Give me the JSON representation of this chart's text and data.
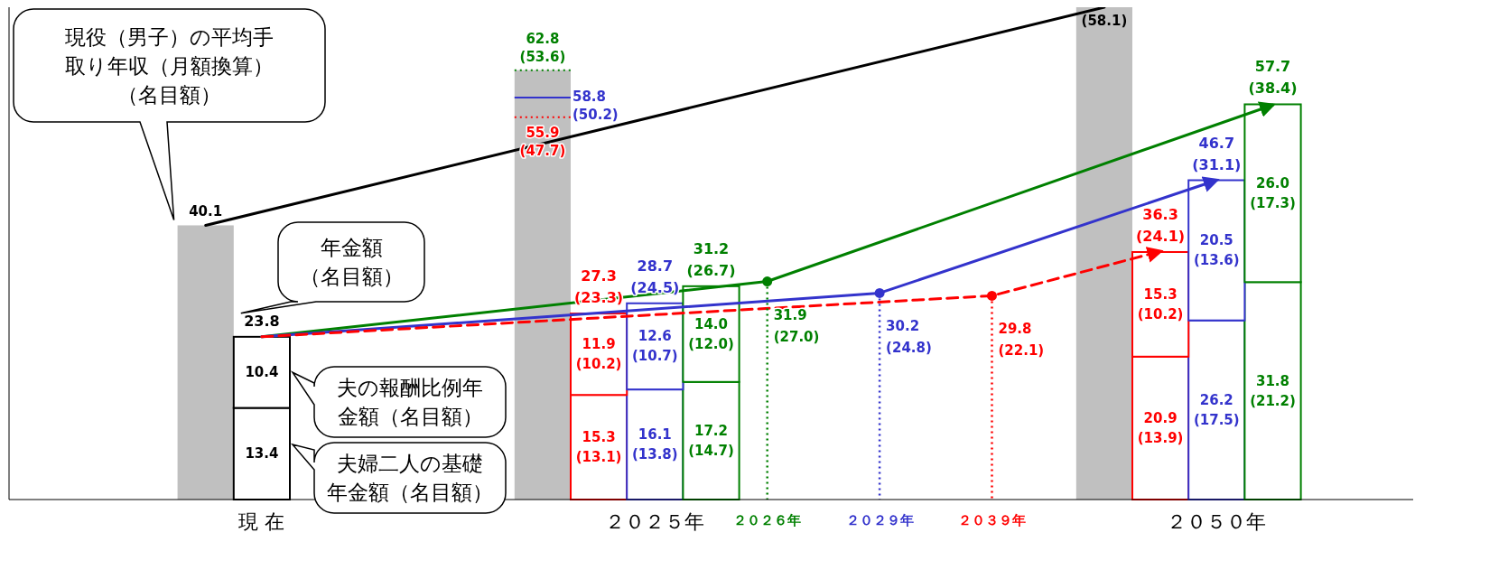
{
  "chart_data": {
    "type": "bar",
    "stacked": true,
    "ylim": [
      0,
      72
    ],
    "tick_labels": "x",
    "categories": [
      null,
      null,
      null,
      null,
      "現 在",
      null,
      null,
      null,
      null,
      null,
      null,
      "２０２５年",
      null,
      "２０２６年",
      null,
      "２０２９年",
      null,
      "２０３９年",
      null,
      null,
      null,
      "２０５０年",
      null,
      null,
      null
    ],
    "series": [
      {
        "color": "#c0c0c0",
        "values": [
          null,
          null,
          null,
          40.1,
          null,
          null,
          null,
          null,
          null,
          62.8,
          null,
          null,
          null,
          null,
          null,
          null,
          null,
          null,
          null,
          72,
          null,
          null,
          null,
          null,
          null
        ],
        "value_labels": [
          null,
          null,
          null,
          "40.1",
          null,
          null,
          null,
          null,
          null,
          null,
          null,
          null,
          null,
          null,
          null,
          null,
          null,
          null,
          null,
          null,
          null,
          null,
          null,
          null,
          null
        ]
      },
      {
        "color": "#000000",
        "values": [
          null,
          null,
          null,
          null,
          13.4,
          null,
          null,
          null,
          null,
          null,
          15.3,
          16.1,
          17.2,
          null,
          null,
          null,
          null,
          null,
          null,
          null,
          20.9,
          26.2,
          31.8,
          null,
          null
        ],
        "colors": [
          null,
          null,
          null,
          null,
          "#000000",
          null,
          null,
          null,
          null,
          null,
          "#ff0000",
          "#3333cc",
          "#008000",
          null,
          null,
          null,
          null,
          null,
          null,
          null,
          "#ff0000",
          "#3333cc",
          "#008000",
          null,
          null
        ],
        "value_labels": [
          null,
          null,
          null,
          null,
          "13.4",
          null,
          null,
          null,
          null,
          null,
          "15.3\n(13.1)",
          "16.1\n(13.8)",
          "17.2\n(14.7)",
          null,
          null,
          null,
          null,
          null,
          null,
          null,
          "20.9\n(13.9)",
          "26.2\n(17.5)",
          "31.8\n(21.2)",
          null,
          null
        ]
      },
      {
        "color": "#000000",
        "values": [
          null,
          null,
          null,
          null,
          10.4,
          null,
          null,
          null,
          null,
          null,
          11.9,
          12.6,
          14.0,
          null,
          null,
          null,
          null,
          null,
          null,
          null,
          15.3,
          20.5,
          26.0,
          null,
          null
        ],
        "colors": [
          null,
          null,
          null,
          null,
          "#000000",
          null,
          null,
          null,
          null,
          null,
          "#ff0000",
          "#3333cc",
          "#008000",
          null,
          null,
          null,
          null,
          null,
          null,
          null,
          "#ff0000",
          "#3333cc",
          "#008000",
          null,
          null
        ],
        "value_labels": [
          null,
          null,
          null,
          null,
          "10.4",
          null,
          null,
          null,
          null,
          null,
          "11.9\n(10.2)",
          "12.6\n(10.7)",
          "14.0\n(12.0)",
          null,
          null,
          null,
          null,
          null,
          null,
          null,
          "15.3\n(10.2)",
          "20.5\n(13.6)",
          "26.0\n(17.3)",
          null,
          null
        ]
      },
      {
        "type": "line",
        "color": "#000000",
        "values": [
          null,
          null,
          null,
          40.1,
          null,
          null,
          null,
          null,
          null,
          null,
          null,
          null,
          null,
          null,
          null,
          null,
          null,
          null,
          null,
          72,
          null,
          null,
          null,
          null,
          null
        ]
      },
      {
        "type": "line",
        "color": "#008000",
        "line_style": "solid",
        "values": [
          null,
          null,
          null,
          null,
          23.8,
          null,
          null,
          null,
          null,
          null,
          null,
          null,
          null,
          31.9,
          null,
          null,
          null,
          null,
          null,
          null,
          null,
          null,
          57.7,
          null,
          null
        ]
      },
      {
        "type": "line",
        "color": "#3333cc",
        "line_style": "solid",
        "values": [
          null,
          null,
          null,
          null,
          23.8,
          null,
          null,
          null,
          null,
          null,
          null,
          null,
          null,
          null,
          null,
          30.2,
          null,
          null,
          null,
          null,
          null,
          46.7,
          null,
          null,
          null
        ]
      },
      {
        "type": "line",
        "color": "#ff0000",
        "line_style": "dashed",
        "values": [
          null,
          null,
          null,
          null,
          23.8,
          null,
          null,
          null,
          null,
          null,
          null,
          null,
          null,
          null,
          null,
          null,
          null,
          29.8,
          null,
          null,
          36.3,
          null,
          null,
          null,
          null
        ]
      },
      {
        "type": "lollipop",
        "color": "#008000",
        "marker": "circle",
        "line_style": "dotted",
        "values": [
          null,
          null,
          null,
          null,
          null,
          null,
          null,
          null,
          null,
          null,
          null,
          null,
          null,
          31.9,
          null,
          null,
          null,
          null,
          null,
          null,
          null,
          null,
          null,
          null,
          null
        ],
        "value_labels": [
          null,
          null,
          null,
          null,
          null,
          null,
          null,
          null,
          null,
          null,
          null,
          null,
          null,
          "31.9\n(27.0)",
          null,
          null,
          null,
          null,
          null,
          null,
          null,
          null,
          null,
          null,
          null
        ]
      },
      {
        "type": "lollipop",
        "color": "#3333cc",
        "marker": "circle",
        "line_style": "dotted",
        "values": [
          null,
          null,
          null,
          null,
          null,
          null,
          null,
          null,
          null,
          null,
          null,
          null,
          null,
          null,
          null,
          30.2,
          null,
          null,
          null,
          null,
          null,
          null,
          null,
          null,
          null
        ],
        "value_labels": [
          null,
          null,
          null,
          null,
          null,
          null,
          null,
          null,
          null,
          null,
          null,
          null,
          null,
          null,
          null,
          "30.2\n(24.8)",
          null,
          null,
          null,
          null,
          null,
          null,
          null,
          null,
          null
        ]
      },
      {
        "type": "lollipop",
        "color": "#ff0000",
        "marker": "circle",
        "line_style": "dotted",
        "values": [
          null,
          null,
          null,
          null,
          null,
          null,
          null,
          null,
          null,
          null,
          null,
          null,
          null,
          null,
          null,
          null,
          null,
          29.8,
          null,
          null,
          null,
          null,
          null,
          null,
          null
        ],
        "value_labels": [
          null,
          null,
          null,
          null,
          null,
          null,
          null,
          null,
          null,
          null,
          null,
          null,
          null,
          null,
          null,
          null,
          null,
          "29.8\n(22.1)",
          null,
          null,
          null,
          null,
          null,
          null,
          null
        ]
      }
    ],
    "ref_lines": [
      {
        "axis": "y",
        "value": 62.8,
        "label": "62.8\n(53.6)",
        "color": "#008000",
        "line_style": "dotted"
      },
      {
        "axis": "y",
        "value": 58.8,
        "label": "58.8\n(50.2)",
        "color": "#3333cc",
        "line_style": "solid"
      },
      {
        "axis": "y",
        "value": 55.9,
        "label": "55.9\n(47.7)",
        "color": "#ff0000",
        "line_style": "dotted"
      }
    ],
    "totals": [
      null,
      null,
      null,
      null,
      "23.8",
      null,
      null,
      null,
      null,
      null,
      "27.3\n(23.3)",
      "28.7\n(24.5)",
      "31.2\n(26.7)",
      null,
      null,
      null,
      null,
      null,
      null,
      null,
      "36.3\n(24.1)",
      "46.7\n(31.1)",
      "57.7\n(38.4)",
      null,
      null
    ],
    "annotations": [
      "現役（男子）の平均手取り年収（月額換算）（名目額）",
      "年金額（名目額）",
      "夫の報酬比例年金額（名目額）",
      "夫婦二人の基礎年金額（名目額）",
      "(58.1)"
    ]
  }
}
